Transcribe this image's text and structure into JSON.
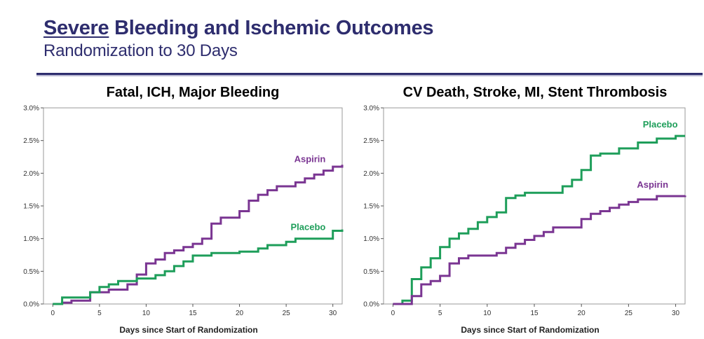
{
  "header": {
    "title_emphasis": "Severe",
    "title_rest": " Bleeding and Ischemic Outcomes",
    "subtitle": "Randomization to 30 Days"
  },
  "colors": {
    "header_text": "#2e2d6e",
    "aspirin": "#7a3592",
    "placebo": "#1e9e5a"
  },
  "chart_data": [
    {
      "type": "line",
      "step": true,
      "title": "Fatal, ICH, Major Bleeding",
      "xlabel": "Days since Start of Randomization",
      "ylabel": "",
      "xlim": [
        -1,
        31
      ],
      "ylim": [
        0,
        3.0
      ],
      "xticks": [
        0,
        5,
        10,
        15,
        20,
        25,
        30
      ],
      "yticks": [
        0,
        0.5,
        1.0,
        1.5,
        2.0,
        2.5,
        3.0
      ],
      "ytick_labels": [
        "0.0%",
        "0.5%",
        "1.0%",
        "1.5%",
        "2.0%",
        "2.5%",
        "3.0%"
      ],
      "series": [
        {
          "name": "Aspirin",
          "color": "#7a3592",
          "x": [
            0,
            1,
            2,
            4,
            6,
            8,
            9,
            10,
            11,
            12,
            13,
            14,
            15,
            16,
            17,
            18,
            20,
            21,
            22,
            23,
            24,
            26,
            27,
            28,
            29,
            30,
            31
          ],
          "y": [
            0,
            0.02,
            0.05,
            0.18,
            0.22,
            0.3,
            0.45,
            0.62,
            0.68,
            0.78,
            0.82,
            0.87,
            0.92,
            1.0,
            1.23,
            1.32,
            1.42,
            1.58,
            1.67,
            1.74,
            1.8,
            1.86,
            1.92,
            1.98,
            2.04,
            2.1,
            2.13
          ]
        },
        {
          "name": "Placebo",
          "color": "#1e9e5a",
          "x": [
            0,
            1,
            4,
            5,
            6,
            7,
            9,
            11,
            12,
            13,
            14,
            15,
            17,
            20,
            22,
            23,
            25,
            26,
            30,
            31
          ],
          "y": [
            0,
            0.1,
            0.18,
            0.26,
            0.3,
            0.35,
            0.39,
            0.44,
            0.5,
            0.58,
            0.65,
            0.74,
            0.78,
            0.8,
            0.85,
            0.9,
            0.95,
            1.0,
            1.12,
            1.14
          ]
        }
      ]
    },
    {
      "type": "line",
      "step": true,
      "title": "CV Death, Stroke, MI,  Stent Thrombosis",
      "xlabel": "Days since Start of Randomization",
      "ylabel": "",
      "xlim": [
        -1,
        31
      ],
      "ylim": [
        0,
        3.0
      ],
      "xticks": [
        0,
        5,
        10,
        15,
        20,
        25,
        30
      ],
      "yticks": [
        0,
        0.5,
        1.0,
        1.5,
        2.0,
        2.5,
        3.0
      ],
      "ytick_labels": [
        "0.0%",
        "0.5%",
        "1.0%",
        "1.5%",
        "2.0%",
        "2.5%",
        "3.0%"
      ],
      "series": [
        {
          "name": "Placebo",
          "color": "#1e9e5a",
          "x": [
            0,
            1,
            2,
            3,
            4,
            5,
            6,
            7,
            8,
            9,
            10,
            11,
            12,
            13,
            14,
            18,
            19,
            20,
            21,
            22,
            24,
            26,
            28,
            30,
            31
          ],
          "y": [
            0,
            0.05,
            0.38,
            0.56,
            0.7,
            0.87,
            1.0,
            1.08,
            1.15,
            1.25,
            1.33,
            1.4,
            1.62,
            1.66,
            1.7,
            1.8,
            1.9,
            2.05,
            2.27,
            2.3,
            2.38,
            2.47,
            2.53,
            2.57,
            2.57
          ]
        },
        {
          "name": "Aspirin",
          "color": "#7a3592",
          "x": [
            0,
            2,
            3,
            4,
            5,
            6,
            7,
            8,
            11,
            12,
            13,
            14,
            15,
            16,
            17,
            20,
            21,
            22,
            23,
            24,
            25,
            26,
            28,
            31
          ],
          "y": [
            0,
            0.12,
            0.3,
            0.35,
            0.43,
            0.62,
            0.7,
            0.74,
            0.78,
            0.86,
            0.92,
            0.98,
            1.04,
            1.1,
            1.17,
            1.3,
            1.38,
            1.42,
            1.47,
            1.52,
            1.56,
            1.6,
            1.65,
            1.66
          ]
        }
      ]
    }
  ]
}
